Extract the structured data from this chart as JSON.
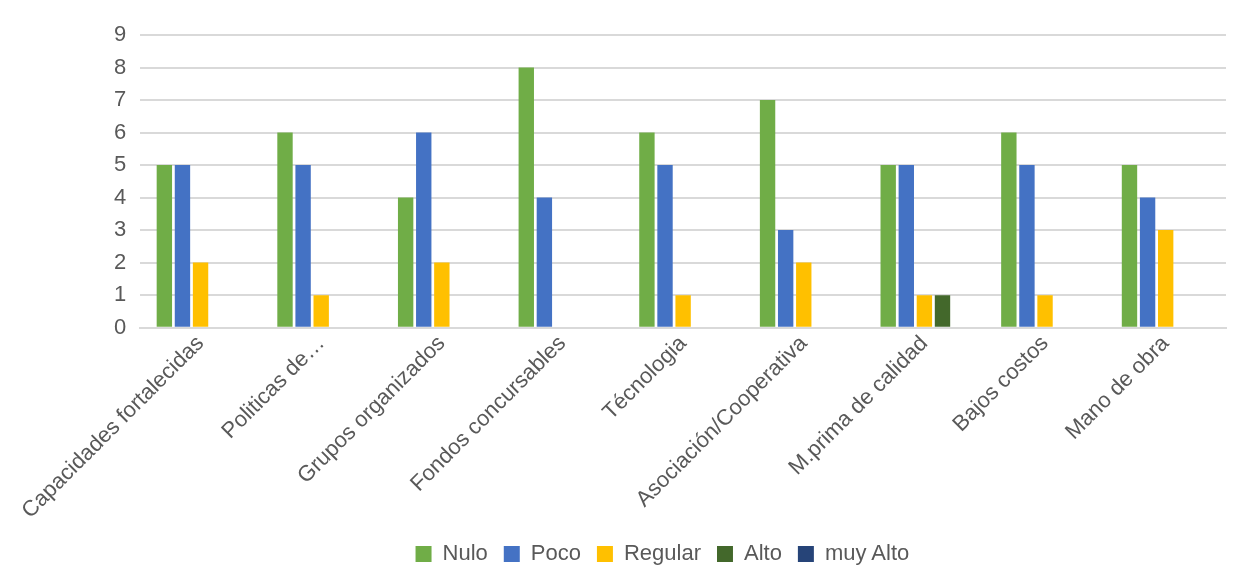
{
  "chart_data": {
    "type": "bar",
    "categories": [
      "Capacidades fortalecidas",
      "Politicas de…",
      "Grupos organizados",
      "Fondos concursables",
      "Técnologia",
      "Asociación/Cooperativa",
      "M.prima de calidad",
      "Bajos costos",
      "Mano de obra"
    ],
    "series": [
      {
        "name": "Nulo",
        "color": "#70ad47",
        "values": [
          5,
          6,
          4,
          8,
          6,
          7,
          5,
          6,
          5
        ]
      },
      {
        "name": "Poco",
        "color": "#4472c4",
        "values": [
          5,
          5,
          6,
          4,
          5,
          3,
          5,
          5,
          4
        ]
      },
      {
        "name": "Regular",
        "color": "#ffc000",
        "values": [
          2,
          1,
          2,
          0,
          1,
          2,
          1,
          1,
          3
        ]
      },
      {
        "name": "Alto",
        "color": "#43682b",
        "values": [
          0,
          0,
          0,
          0,
          0,
          0,
          1,
          0,
          0
        ]
      },
      {
        "name": "muy Alto",
        "color": "#264478",
        "values": [
          0,
          0,
          0,
          0,
          0,
          0,
          0,
          0,
          0
        ]
      }
    ],
    "ylim": [
      0,
      9
    ],
    "yticks": [
      0,
      1,
      2,
      3,
      4,
      5,
      6,
      7,
      8,
      9
    ],
    "grid": "y",
    "legend": "bottom"
  }
}
